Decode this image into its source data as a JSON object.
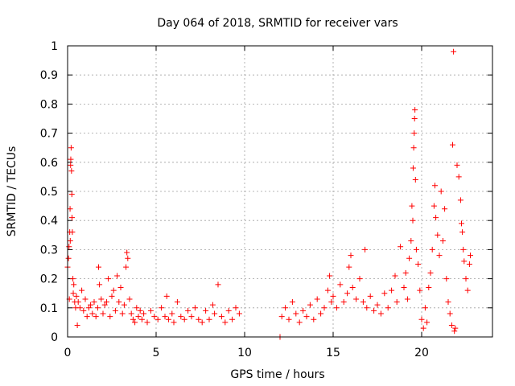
{
  "chart_data": {
    "type": "scatter",
    "title": "Day 064 of 2018, SRMTID for receiver vars",
    "xlabel": "GPS time / hours",
    "ylabel": "SRMTID / TECUs",
    "xlim": [
      0,
      24
    ],
    "ylim": [
      0,
      1
    ],
    "x_ticks": [
      0,
      5,
      10,
      15,
      20
    ],
    "x_tick_labels": [
      "0",
      "5",
      "10",
      "15",
      "20"
    ],
    "y_ticks": [
      0,
      0.1,
      0.2,
      0.3,
      0.4,
      0.5,
      0.6,
      0.7,
      0.8,
      0.9,
      1
    ],
    "y_tick_labels": [
      "0",
      "0.1",
      "0.2",
      "0.3",
      "0.4",
      "0.5",
      "0.6",
      "0.7",
      "0.8",
      "0.9",
      "1"
    ],
    "grid": true,
    "marker": "+",
    "marker_color": "#ff0000",
    "series": [
      {
        "name": "SRMTID",
        "points": [
          [
            0.0,
            0.24
          ],
          [
            0.05,
            0.27
          ],
          [
            0.08,
            0.31
          ],
          [
            0.1,
            0.13
          ],
          [
            0.12,
            0.36
          ],
          [
            0.14,
            0.44
          ],
          [
            0.15,
            0.33
          ],
          [
            0.17,
            0.59
          ],
          [
            0.18,
            0.61
          ],
          [
            0.2,
            0.65
          ],
          [
            0.22,
            0.57
          ],
          [
            0.24,
            0.49
          ],
          [
            0.25,
            0.41
          ],
          [
            0.27,
            0.36
          ],
          [
            0.3,
            0.2
          ],
          [
            0.32,
            0.15
          ],
          [
            0.35,
            0.18
          ],
          [
            0.4,
            0.12
          ],
          [
            0.45,
            0.1
          ],
          [
            0.5,
            0.14
          ],
          [
            0.55,
            0.04
          ],
          [
            0.6,
            0.12
          ],
          [
            0.7,
            0.1
          ],
          [
            0.8,
            0.16
          ],
          [
            0.9,
            0.09
          ],
          [
            1.0,
            0.13
          ],
          [
            1.1,
            0.07
          ],
          [
            1.2,
            0.1
          ],
          [
            1.3,
            0.11
          ],
          [
            1.4,
            0.08
          ],
          [
            1.5,
            0.12
          ],
          [
            1.6,
            0.07
          ],
          [
            1.7,
            0.1
          ],
          [
            1.75,
            0.24
          ],
          [
            1.8,
            0.18
          ],
          [
            1.9,
            0.13
          ],
          [
            2.0,
            0.08
          ],
          [
            2.1,
            0.11
          ],
          [
            2.2,
            0.12
          ],
          [
            2.3,
            0.2
          ],
          [
            2.4,
            0.07
          ],
          [
            2.5,
            0.14
          ],
          [
            2.6,
            0.16
          ],
          [
            2.7,
            0.09
          ],
          [
            2.8,
            0.21
          ],
          [
            2.9,
            0.12
          ],
          [
            3.0,
            0.17
          ],
          [
            3.1,
            0.08
          ],
          [
            3.2,
            0.11
          ],
          [
            3.3,
            0.24
          ],
          [
            3.35,
            0.29
          ],
          [
            3.4,
            0.27
          ],
          [
            3.5,
            0.13
          ],
          [
            3.6,
            0.08
          ],
          [
            3.7,
            0.06
          ],
          [
            3.8,
            0.05
          ],
          [
            3.9,
            0.1
          ],
          [
            4.0,
            0.07
          ],
          [
            4.1,
            0.09
          ],
          [
            4.2,
            0.06
          ],
          [
            4.3,
            0.08
          ],
          [
            4.5,
            0.05
          ],
          [
            4.7,
            0.09
          ],
          [
            4.9,
            0.07
          ],
          [
            5.1,
            0.06
          ],
          [
            5.3,
            0.1
          ],
          [
            5.5,
            0.07
          ],
          [
            5.6,
            0.14
          ],
          [
            5.7,
            0.06
          ],
          [
            5.9,
            0.08
          ],
          [
            6.0,
            0.05
          ],
          [
            6.2,
            0.12
          ],
          [
            6.4,
            0.07
          ],
          [
            6.6,
            0.06
          ],
          [
            6.8,
            0.09
          ],
          [
            7.0,
            0.07
          ],
          [
            7.2,
            0.1
          ],
          [
            7.4,
            0.06
          ],
          [
            7.6,
            0.05
          ],
          [
            7.8,
            0.09
          ],
          [
            8.0,
            0.06
          ],
          [
            8.2,
            0.11
          ],
          [
            8.3,
            0.08
          ],
          [
            8.5,
            0.18
          ],
          [
            8.7,
            0.07
          ],
          [
            8.9,
            0.05
          ],
          [
            9.1,
            0.09
          ],
          [
            9.3,
            0.06
          ],
          [
            9.5,
            0.1
          ],
          [
            9.7,
            0.08
          ],
          [
            12.0,
            0.0
          ],
          [
            12.1,
            0.07
          ],
          [
            12.3,
            0.1
          ],
          [
            12.5,
            0.06
          ],
          [
            12.7,
            0.12
          ],
          [
            12.9,
            0.08
          ],
          [
            13.1,
            0.05
          ],
          [
            13.3,
            0.09
          ],
          [
            13.5,
            0.07
          ],
          [
            13.7,
            0.11
          ],
          [
            13.9,
            0.06
          ],
          [
            14.1,
            0.13
          ],
          [
            14.3,
            0.08
          ],
          [
            14.5,
            0.1
          ],
          [
            14.7,
            0.16
          ],
          [
            14.8,
            0.21
          ],
          [
            14.9,
            0.12
          ],
          [
            15.0,
            0.14
          ],
          [
            15.2,
            0.1
          ],
          [
            15.4,
            0.18
          ],
          [
            15.6,
            0.12
          ],
          [
            15.8,
            0.15
          ],
          [
            15.9,
            0.24
          ],
          [
            16.0,
            0.28
          ],
          [
            16.1,
            0.17
          ],
          [
            16.3,
            0.13
          ],
          [
            16.5,
            0.2
          ],
          [
            16.7,
            0.12
          ],
          [
            16.8,
            0.3
          ],
          [
            16.9,
            0.1
          ],
          [
            17.1,
            0.14
          ],
          [
            17.3,
            0.09
          ],
          [
            17.5,
            0.11
          ],
          [
            17.7,
            0.08
          ],
          [
            17.9,
            0.15
          ],
          [
            18.1,
            0.1
          ],
          [
            18.3,
            0.16
          ],
          [
            18.5,
            0.21
          ],
          [
            18.6,
            0.12
          ],
          [
            18.8,
            0.31
          ],
          [
            19.0,
            0.17
          ],
          [
            19.1,
            0.22
          ],
          [
            19.2,
            0.13
          ],
          [
            19.3,
            0.27
          ],
          [
            19.4,
            0.33
          ],
          [
            19.45,
            0.45
          ],
          [
            19.5,
            0.4
          ],
          [
            19.52,
            0.58
          ],
          [
            19.55,
            0.65
          ],
          [
            19.58,
            0.7
          ],
          [
            19.6,
            0.75
          ],
          [
            19.62,
            0.78
          ],
          [
            19.65,
            0.54
          ],
          [
            19.7,
            0.3
          ],
          [
            19.8,
            0.25
          ],
          [
            19.9,
            0.16
          ],
          [
            20.0,
            0.06
          ],
          [
            20.1,
            0.03
          ],
          [
            20.2,
            0.1
          ],
          [
            20.3,
            0.05
          ],
          [
            20.4,
            0.17
          ],
          [
            20.5,
            0.22
          ],
          [
            20.6,
            0.3
          ],
          [
            20.7,
            0.45
          ],
          [
            20.75,
            0.52
          ],
          [
            20.8,
            0.41
          ],
          [
            20.9,
            0.35
          ],
          [
            21.0,
            0.28
          ],
          [
            21.1,
            0.5
          ],
          [
            21.2,
            0.33
          ],
          [
            21.3,
            0.44
          ],
          [
            21.4,
            0.2
          ],
          [
            21.5,
            0.12
          ],
          [
            21.6,
            0.08
          ],
          [
            21.7,
            0.04
          ],
          [
            21.75,
            0.66
          ],
          [
            21.8,
            0.98
          ],
          [
            21.85,
            0.02
          ],
          [
            21.9,
            0.03
          ],
          [
            22.0,
            0.59
          ],
          [
            22.1,
            0.55
          ],
          [
            22.2,
            0.47
          ],
          [
            22.25,
            0.39
          ],
          [
            22.3,
            0.36
          ],
          [
            22.35,
            0.3
          ],
          [
            22.4,
            0.26
          ],
          [
            22.5,
            0.2
          ],
          [
            22.6,
            0.16
          ],
          [
            22.7,
            0.25
          ],
          [
            22.75,
            0.28
          ]
        ]
      }
    ]
  }
}
